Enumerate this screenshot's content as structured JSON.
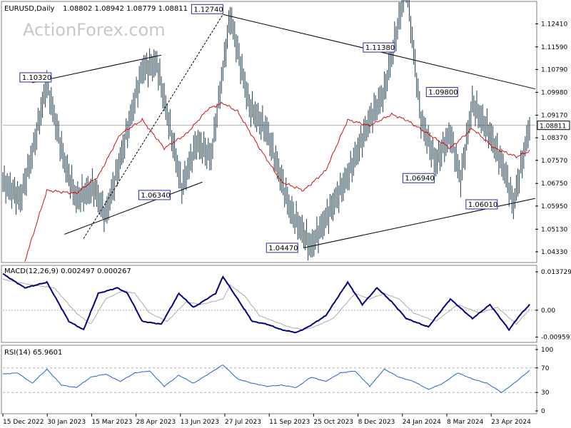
{
  "watermark": "ActionForex.com",
  "chart_data": [
    {
      "type": "line",
      "title": "EURUSD,Daily",
      "ohlc_label": "1.08802 1.08942 1.08779 1.08811",
      "last_value": 1.08811,
      "last_label": "1.08811",
      "ylim": [
        1.0405,
        1.1305
      ],
      "y_ticks": [
        1.0433,
        1.0513,
        1.0595,
        1.0675,
        1.0757,
        1.0837,
        1.0917,
        1.0998,
        1.1079,
        1.1159,
        1.1241
      ],
      "y_tick_labels": [
        "1.04330",
        "1.05130",
        "1.05950",
        "1.06750",
        "1.07570",
        "1.08370",
        "1.09170",
        "1.09980",
        "1.10790",
        "1.11590",
        "1.12410"
      ],
      "x_tick_labels": [
        "15 Dec 2022",
        "30 Jan 2023",
        "15 Mar 2023",
        "28 Apr 2023",
        "13 Jun 2023",
        "27 Jul 2023",
        "11 Sep 2023",
        "25 Oct 2023",
        "8 Dec 2023",
        "24 Jan 2024",
        "8 Mar 2024",
        "23 Apr 2024"
      ],
      "num_bars": 360,
      "series": [
        {
          "color": "#1f3f4f",
          "x": [
            0,
            12,
            20,
            30,
            42,
            50,
            62,
            70,
            82,
            95,
            105,
            122,
            132,
            142,
            155,
            168,
            180,
            196,
            210,
            220,
            235,
            250,
            260,
            275,
            285,
            295,
            305,
            312,
            320,
            332,
            342,
            348,
            359
          ],
          "values": [
            1.068,
            1.062,
            1.078,
            1.103,
            1.075,
            1.062,
            1.066,
            1.056,
            1.08,
            1.108,
            1.11,
            1.066,
            1.082,
            1.077,
            1.127,
            1.095,
            1.086,
            1.058,
            1.045,
            1.055,
            1.07,
            1.09,
            1.1,
            1.138,
            1.09,
            1.075,
            1.085,
            1.069,
            1.096,
            1.085,
            1.072,
            1.06,
            1.088
          ]
        },
        {
          "color": "#d01010",
          "x": [
            15,
            30,
            50,
            65,
            80,
            95,
            110,
            125,
            140,
            150,
            160,
            175,
            190,
            205,
            220,
            235,
            250,
            265,
            275,
            290,
            305,
            320,
            335,
            350,
            359
          ],
          "values": [
            1.04,
            1.065,
            1.064,
            1.07,
            1.085,
            1.09,
            1.08,
            1.085,
            1.094,
            1.096,
            1.093,
            1.08,
            1.068,
            1.065,
            1.072,
            1.09,
            1.088,
            1.092,
            1.09,
            1.085,
            1.08,
            1.087,
            1.08,
            1.077,
            1.079
          ]
        }
      ],
      "trendlines": [
        {
          "x": [
            20,
            108
          ],
          "values": [
            1.1032,
            1.113
          ]
        },
        {
          "x": [
            42,
            136
          ],
          "values": [
            1.0495,
            1.068
          ]
        },
        {
          "x": [
            55,
            150
          ],
          "values": [
            1.048,
            1.1274
          ]
        },
        {
          "x": [
            150,
            370
          ],
          "values": [
            1.1274,
            1.101
          ]
        },
        {
          "x": [
            205,
            370
          ],
          "values": [
            1.0447,
            1.0622
          ]
        }
      ],
      "callouts": [
        {
          "text": "1.12740",
          "x": 150,
          "value": 1.1274,
          "anchor": "left"
        },
        {
          "text": "1.10320",
          "x": 33,
          "value": 1.1032,
          "anchor": "left"
        },
        {
          "text": "1.11380",
          "x": 267,
          "value": 1.1138,
          "anchor": "left"
        },
        {
          "text": "1.09800",
          "x": 310,
          "value": 1.098,
          "anchor": "left"
        },
        {
          "text": "1.06340",
          "x": 115,
          "value": 1.0634,
          "anchor": "left"
        },
        {
          "text": "1.06940",
          "x": 295,
          "value": 1.0694,
          "anchor": "left"
        },
        {
          "text": "1.06010",
          "x": 338,
          "value": 1.0601,
          "anchor": "left"
        },
        {
          "text": "1.04470",
          "x": 202,
          "value": 1.0447,
          "anchor": "left"
        }
      ]
    },
    {
      "type": "line",
      "title": "MACD(12,26,9) 0.002497 0.000267",
      "ylim": [
        -0.0105,
        0.0145
      ],
      "y_ticks": [
        0.013729,
        0.0,
        -0.009593
      ],
      "y_tick_labels": [
        "0.013729",
        "0.00",
        "-0.009593"
      ],
      "series": [
        {
          "color": "#000080",
          "x": [
            0,
            15,
            30,
            45,
            55,
            65,
            78,
            85,
            95,
            108,
            120,
            130,
            145,
            150,
            160,
            170,
            180,
            190,
            200,
            208,
            220,
            235,
            245,
            255,
            265,
            275,
            290,
            305,
            320,
            332,
            345,
            352,
            359
          ],
          "values": [
            0.013,
            0.008,
            0.01,
            -0.004,
            -0.007,
            0.006,
            0.008,
            0.006,
            -0.004,
            -0.005,
            0.006,
            0.001,
            0.006,
            0.012,
            0.004,
            -0.004,
            -0.005,
            -0.007,
            -0.008,
            -0.006,
            -0.002,
            0.01,
            0.002,
            0.008,
            0.003,
            -0.003,
            -0.006,
            0.004,
            -0.003,
            0.002,
            -0.007,
            -0.002,
            0.002
          ]
        },
        {
          "color": "#aaaaaa",
          "x": [
            0,
            20,
            35,
            50,
            60,
            70,
            82,
            90,
            100,
            112,
            125,
            135,
            150,
            155,
            165,
            175,
            185,
            195,
            205,
            212,
            225,
            240,
            250,
            260,
            270,
            280,
            295,
            310,
            325,
            337,
            350,
            359
          ],
          "values": [
            0.011,
            0.009,
            0.008,
            -0.001,
            -0.005,
            0.004,
            0.007,
            0.006,
            -0.001,
            -0.004,
            0.003,
            0.002,
            0.004,
            0.009,
            0.005,
            -0.002,
            -0.004,
            -0.006,
            -0.007,
            -0.006,
            -0.003,
            0.006,
            0.004,
            0.006,
            0.004,
            -0.001,
            -0.004,
            0.002,
            -0.001,
            0.001,
            -0.005,
            0.0003
          ]
        }
      ]
    },
    {
      "type": "line",
      "title": "RSI(14) 65.9601",
      "ylim": [
        0,
        100
      ],
      "y_ticks": [
        100,
        70,
        30,
        0
      ],
      "y_tick_labels": [
        "100",
        "70",
        "30",
        "0"
      ],
      "levels": [
        70,
        30
      ],
      "series": [
        {
          "color": "#2060e0",
          "x": [
            0,
            10,
            20,
            30,
            40,
            50,
            60,
            70,
            80,
            90,
            100,
            110,
            120,
            130,
            140,
            150,
            160,
            170,
            180,
            190,
            200,
            210,
            220,
            230,
            240,
            250,
            260,
            270,
            280,
            290,
            300,
            310,
            320,
            330,
            340,
            350,
            359
          ],
          "values": [
            60,
            62,
            45,
            68,
            42,
            38,
            55,
            60,
            48,
            62,
            65,
            40,
            58,
            45,
            60,
            75,
            52,
            45,
            40,
            42,
            38,
            55,
            48,
            62,
            65,
            40,
            68,
            55,
            48,
            35,
            45,
            62,
            52,
            45,
            30,
            48,
            66
          ]
        }
      ]
    }
  ]
}
